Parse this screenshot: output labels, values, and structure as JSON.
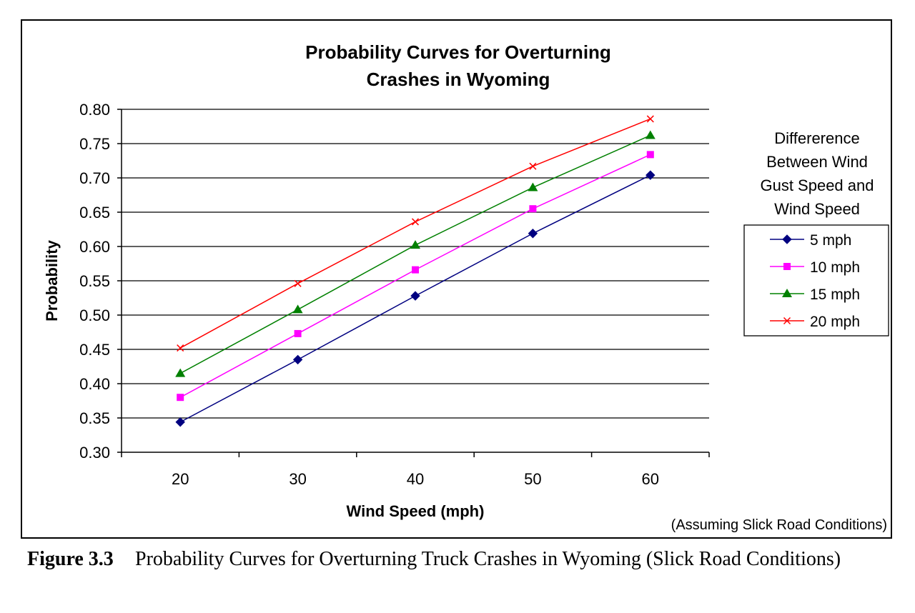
{
  "chart_data": {
    "type": "line",
    "title_lines": [
      "Probability Curves for Overturning",
      "Crashes in Wyoming"
    ],
    "xlabel": "Wind Speed (mph)",
    "ylabel": "Probability",
    "x": [
      20,
      30,
      40,
      50,
      60
    ],
    "x_tick_labels": [
      "20",
      "30",
      "40",
      "50",
      "60"
    ],
    "ylim": [
      0.3,
      0.8
    ],
    "y_ticks": [
      0.3,
      0.35,
      0.4,
      0.45,
      0.5,
      0.55,
      0.6,
      0.65,
      0.7,
      0.75,
      0.8
    ],
    "y_tick_labels": [
      "0.30",
      "0.35",
      "0.40",
      "0.45",
      "0.50",
      "0.55",
      "0.60",
      "0.65",
      "0.70",
      "0.75",
      "0.80"
    ],
    "grid": "horizontal",
    "legend_title_lines": [
      "Differerence",
      "Between Wind",
      "Gust Speed and",
      "Wind Speed"
    ],
    "legend_position": "right",
    "note": "(Assuming Slick Road Conditions)",
    "series": [
      {
        "name": "5 mph",
        "color": "#000080",
        "marker": "diamond",
        "values": [
          0.344,
          0.435,
          0.528,
          0.619,
          0.704
        ]
      },
      {
        "name": "10 mph",
        "color": "#ff00ff",
        "marker": "square",
        "values": [
          0.38,
          0.473,
          0.566,
          0.655,
          0.734
        ]
      },
      {
        "name": "15 mph",
        "color": "#008000",
        "marker": "triangle",
        "values": [
          0.415,
          0.508,
          0.602,
          0.686,
          0.762
        ]
      },
      {
        "name": "20 mph",
        "color": "#ff0000",
        "marker": "x",
        "values": [
          0.452,
          0.546,
          0.636,
          0.717,
          0.786
        ]
      }
    ]
  },
  "caption": {
    "label": "Figure 3.3",
    "text": "Probability Curves for Overturning Truck Crashes in Wyoming (Slick Road Conditions)"
  }
}
